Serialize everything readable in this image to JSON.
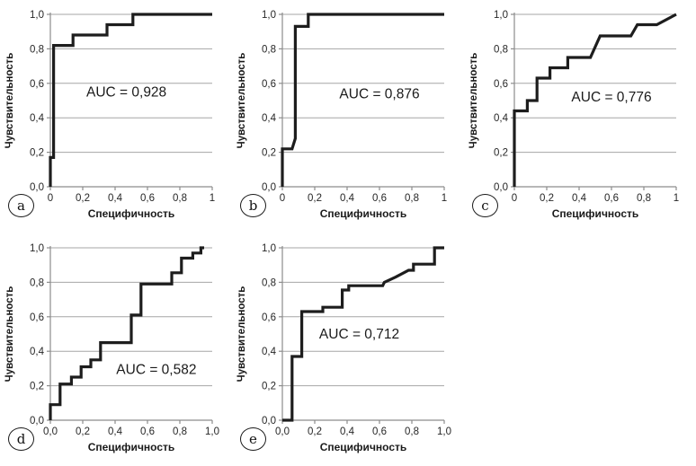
{
  "figure": {
    "description": "Five ROC curve panels labelled a–e with AUC annotations",
    "background": "#ffffff"
  },
  "colors": {
    "curve": "#1d1d1d",
    "grid": "#a6a6a6",
    "axis": "#8c8c8c",
    "tick_text": "#262626",
    "label_text": "#1a1a1a"
  },
  "chart_data": [
    {
      "id": "a",
      "type": "line",
      "badge": "a",
      "auc_value": 0.928,
      "auc_text": "AUC = 0,928",
      "auc_pos": [
        0.47,
        0.55
      ],
      "xlabel": "Специфичность",
      "ylabel": "Чувствительность",
      "xlim": [
        0,
        1
      ],
      "ylim": [
        0,
        1
      ],
      "x_tick_labels": [
        "0",
        "0,2",
        "0,4",
        "0,6",
        "0,8",
        "1"
      ],
      "y_tick_labels": [
        "0,0",
        "0,2",
        "0,4",
        "0,6",
        "0,8",
        "1,0"
      ],
      "grid": "horizontal",
      "points": [
        [
          0,
          0
        ],
        [
          0,
          0.17
        ],
        [
          0.02,
          0.17
        ],
        [
          0.02,
          0.82
        ],
        [
          0.14,
          0.82
        ],
        [
          0.14,
          0.88
        ],
        [
          0.35,
          0.88
        ],
        [
          0.35,
          0.94
        ],
        [
          0.51,
          0.94
        ],
        [
          0.51,
          1
        ],
        [
          1,
          1
        ]
      ]
    },
    {
      "id": "b",
      "type": "line",
      "badge": "b",
      "auc_value": 0.876,
      "auc_text": "AUC = 0,876",
      "auc_pos": [
        0.6,
        0.54
      ],
      "xlabel": "Специфичность",
      "ylabel": "Чувствительность",
      "xlim": [
        0,
        1
      ],
      "ylim": [
        0,
        1
      ],
      "x_tick_labels": [
        "0",
        "0,2",
        "0,4",
        "0,6",
        "0,8",
        "1"
      ],
      "y_tick_labels": [
        "0,0",
        "0,2",
        "0,4",
        "0,6",
        "0,8",
        "1,0"
      ],
      "grid": "horizontal",
      "points": [
        [
          0,
          0
        ],
        [
          0,
          0.22
        ],
        [
          0.06,
          0.22
        ],
        [
          0.08,
          0.28
        ],
        [
          0.08,
          0.93
        ],
        [
          0.16,
          0.93
        ],
        [
          0.16,
          1
        ],
        [
          1,
          1
        ]
      ]
    },
    {
      "id": "c",
      "type": "line",
      "badge": "c",
      "auc_value": 0.776,
      "auc_text": "AUC = 0,776",
      "auc_pos": [
        0.6,
        0.52
      ],
      "xlabel": "Специфичность",
      "ylabel": "Чувствительность",
      "xlim": [
        0,
        1
      ],
      "ylim": [
        0,
        1
      ],
      "x_tick_labels": [
        "0",
        "0,2",
        "0,4",
        "0,6",
        "0,8",
        "1"
      ],
      "y_tick_labels": [
        "0,0",
        "0,2",
        "0,4",
        "0,6",
        "0,8",
        "1,0"
      ],
      "grid": "horizontal",
      "points": [
        [
          0,
          0
        ],
        [
          0,
          0.44
        ],
        [
          0.08,
          0.44
        ],
        [
          0.08,
          0.5
        ],
        [
          0.14,
          0.5
        ],
        [
          0.14,
          0.63
        ],
        [
          0.22,
          0.63
        ],
        [
          0.22,
          0.69
        ],
        [
          0.33,
          0.69
        ],
        [
          0.33,
          0.75
        ],
        [
          0.47,
          0.75
        ],
        [
          0.53,
          0.875
        ],
        [
          0.72,
          0.875
        ],
        [
          0.76,
          0.94
        ],
        [
          0.88,
          0.94
        ],
        [
          1,
          1
        ]
      ]
    },
    {
      "id": "d",
      "type": "line",
      "badge": "d",
      "auc_value": 0.582,
      "auc_text": "AUC = 0,582",
      "auc_pos": [
        0.655,
        0.295
      ],
      "xlabel": "Специфичность",
      "ylabel": "Чувствительность",
      "xlim": [
        0,
        1
      ],
      "ylim": [
        0,
        1
      ],
      "x_tick_labels": [
        "0,0",
        "0,2",
        "0,4",
        "0,6",
        "0,8",
        "1,0"
      ],
      "y_tick_labels": [
        "0,0",
        "0,2",
        "0,4",
        "0,6",
        "0,8",
        "1,0"
      ],
      "grid": "horizontal",
      "points": [
        [
          0,
          0
        ],
        [
          0,
          0.09
        ],
        [
          0.06,
          0.09
        ],
        [
          0.06,
          0.21
        ],
        [
          0.13,
          0.21
        ],
        [
          0.13,
          0.25
        ],
        [
          0.19,
          0.25
        ],
        [
          0.19,
          0.31
        ],
        [
          0.25,
          0.31
        ],
        [
          0.25,
          0.35
        ],
        [
          0.31,
          0.35
        ],
        [
          0.31,
          0.45
        ],
        [
          0.5,
          0.45
        ],
        [
          0.5,
          0.61
        ],
        [
          0.56,
          0.61
        ],
        [
          0.56,
          0.79
        ],
        [
          0.75,
          0.79
        ],
        [
          0.75,
          0.855
        ],
        [
          0.81,
          0.855
        ],
        [
          0.81,
          0.94
        ],
        [
          0.88,
          0.94
        ],
        [
          0.88,
          0.97
        ],
        [
          0.93,
          0.97
        ],
        [
          0.93,
          1
        ],
        [
          0.95,
          1
        ]
      ]
    },
    {
      "id": "e",
      "type": "line",
      "badge": "e",
      "auc_value": 0.712,
      "auc_text": "AUC = 0,712",
      "auc_pos": [
        0.475,
        0.5
      ],
      "xlabel": "Специфичность",
      "ylabel": "Чувствительность",
      "xlim": [
        0,
        1
      ],
      "ylim": [
        0,
        1
      ],
      "x_tick_labels": [
        "0,0",
        "0,2",
        "0,4",
        "0,6",
        "0,8",
        "1,0"
      ],
      "y_tick_labels": [
        "0,0",
        "0,2",
        "0,4",
        "0,6",
        "0,8",
        "1,0"
      ],
      "grid": "horizontal",
      "points": [
        [
          0,
          0
        ],
        [
          0.06,
          0
        ],
        [
          0.06,
          0.37
        ],
        [
          0.12,
          0.37
        ],
        [
          0.12,
          0.63
        ],
        [
          0.25,
          0.63
        ],
        [
          0.25,
          0.655
        ],
        [
          0.37,
          0.655
        ],
        [
          0.37,
          0.755
        ],
        [
          0.41,
          0.755
        ],
        [
          0.41,
          0.78
        ],
        [
          0.62,
          0.78
        ],
        [
          0.63,
          0.8
        ],
        [
          0.7,
          0.83
        ],
        [
          0.78,
          0.87
        ],
        [
          0.81,
          0.87
        ],
        [
          0.81,
          0.905
        ],
        [
          0.94,
          0.905
        ],
        [
          0.94,
          1
        ],
        [
          1,
          1
        ]
      ]
    }
  ]
}
